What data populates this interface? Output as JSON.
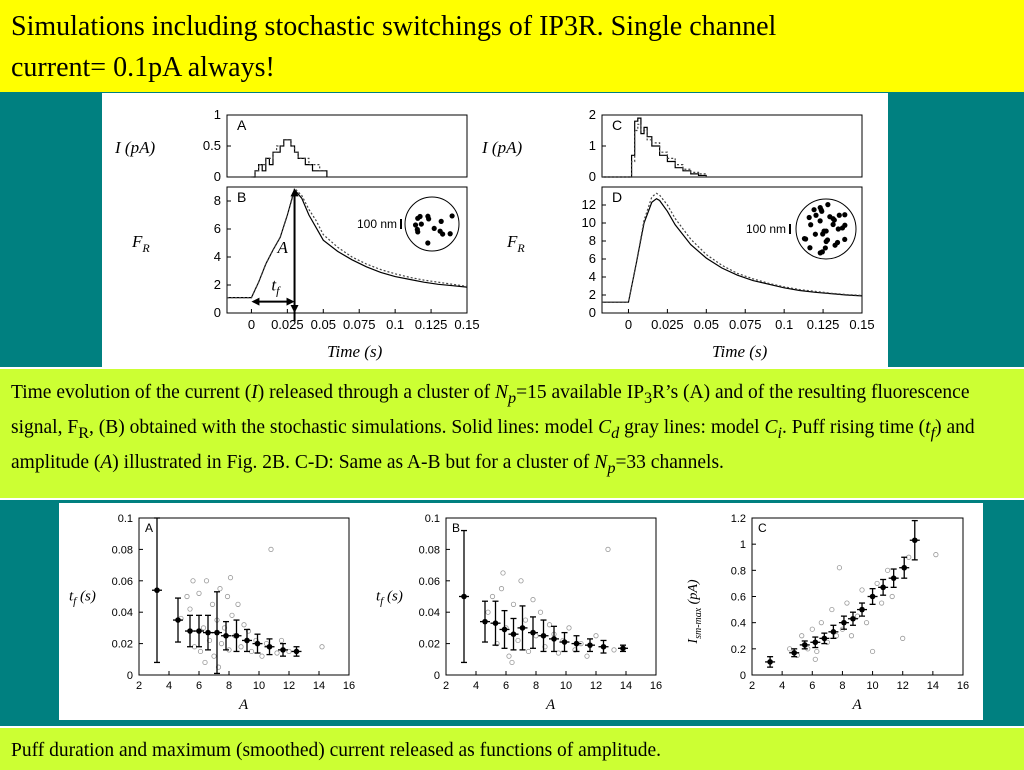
{
  "slide": {
    "title_line1": "Simulations including stochastic switchings of IP3R. Single channel",
    "title_line2": "current= 0.1pA always!",
    "caption1_parts": [
      "Time evolution of the current (",
      "I",
      ") released through a cluster of ",
      "N",
      "p",
      "=15 available IP",
      "3",
      "R’s (A) and of the resulting fluorescence signal, F",
      "R",
      ", (B) obtained with the stochastic simulations. Solid lines: model ",
      "C",
      "d",
      " gray lines: model ",
      "C",
      "i",
      ". Puff rising time (",
      "t",
      "f",
      ") and amplitude (",
      "A",
      ") illustrated in Fig. 2B. C-D: Same as A-B but for a cluster of ",
      "N",
      "p",
      "=33 channels."
    ],
    "caption2": "Puff duration and maximum (smoothed) current released as functions of amplitude."
  },
  "figure_top": {
    "panel_letters": [
      "A",
      "B",
      "C",
      "D"
    ],
    "current_ylabel": "I (pA)",
    "fluor_ylabel_main": "F",
    "fluor_ylabel_sub": "R",
    "xlabel": "Time (s)",
    "scale_label": "100 nm",
    "annot_A": "A",
    "annot_tf_main": "t",
    "annot_tf_sub": "f"
  },
  "figure_bottom": {
    "panel_letters": [
      "A",
      "B",
      "C"
    ],
    "xlabel": "A",
    "tf_ylabel_main": "t",
    "tf_ylabel_sub": "f",
    "tf_ylabel_rest": " (s)",
    "ism_ylabel_main": "I",
    "ism_ylabel_sub": "sm-max",
    "ism_ylabel_rest": " (pA)"
  },
  "chart_data": [
    {
      "type": "line",
      "panel": "A",
      "x": [
        0,
        0.0025,
        0.005,
        0.0075,
        0.01,
        0.0125,
        0.015,
        0.0175,
        0.02,
        0.0225,
        0.025,
        0.0275,
        0.03,
        0.0325,
        0.035,
        0.0375,
        0.04,
        0.0425,
        0.045,
        0.0475,
        0.05,
        0.0525
      ],
      "series": [
        {
          "values": [
            0,
            0.1,
            0.2,
            0.1,
            0.3,
            0.2,
            0.4,
            0.4,
            0.5,
            0.6,
            0.6,
            0.5,
            0.4,
            0.3,
            0.3,
            0.2,
            0.2,
            0.1,
            0.1,
            0.1,
            0.1,
            0
          ]
        },
        {
          "values": [
            0,
            0.1,
            0.2,
            0.2,
            0.3,
            0.3,
            0.4,
            0.5,
            0.5,
            0.6,
            0.6,
            0.5,
            0.4,
            0.3,
            0.3,
            0.3,
            0.2,
            0.2,
            0.2,
            0.1,
            0.1,
            0.1
          ]
        }
      ],
      "xlim": [
        -0.017,
        0.15
      ],
      "ylim": [
        0,
        1
      ],
      "yticks": [
        "0",
        "0.5",
        "1"
      ]
    },
    {
      "type": "line",
      "panel": "B",
      "x": [
        -0.017,
        0,
        0.005,
        0.01,
        0.015,
        0.02,
        0.025,
        0.03,
        0.035,
        0.04,
        0.045,
        0.05,
        0.06,
        0.07,
        0.08,
        0.09,
        0.1,
        0.11,
        0.12,
        0.13,
        0.14,
        0.15
      ],
      "series": [
        {
          "values": [
            1.1,
            1.1,
            2.2,
            3.5,
            4.5,
            5.4,
            7.0,
            8.8,
            8.2,
            7.0,
            6.1,
            5.2,
            4.4,
            3.8,
            3.3,
            2.9,
            2.6,
            2.4,
            2.2,
            2.05,
            1.95,
            1.85
          ]
        },
        {
          "values": [
            1.1,
            1.1,
            2.2,
            3.5,
            4.5,
            5.4,
            7.0,
            8.9,
            8.4,
            7.4,
            6.6,
            5.6,
            4.7,
            4.0,
            3.5,
            3.1,
            2.8,
            2.55,
            2.35,
            2.2,
            2.05,
            1.9
          ]
        }
      ],
      "xlim": [
        -0.017,
        0.15
      ],
      "ylim": [
        0,
        9
      ],
      "xticks": [
        "0",
        "0.025",
        "0.05",
        "0.075",
        "0.1",
        "0.125",
        "0.15"
      ],
      "yticks": [
        "0",
        "2",
        "4",
        "6",
        "8"
      ],
      "inset_label": "100 nm",
      "channel_count": 15
    },
    {
      "type": "line",
      "panel": "C",
      "x": [
        -0.017,
        0,
        0.002,
        0.004,
        0.006,
        0.008,
        0.01,
        0.012,
        0.015,
        0.02,
        0.025,
        0.03,
        0.035,
        0.04,
        0.045,
        0.05
      ],
      "series": [
        {
          "values": [
            0,
            0,
            0.7,
            1.8,
            1.9,
            1.4,
            1.6,
            1.3,
            1.0,
            0.7,
            0.5,
            0.3,
            0.2,
            0.1,
            0.05,
            0
          ]
        },
        {
          "values": [
            0,
            0,
            0.5,
            1.5,
            1.7,
            1.5,
            1.5,
            1.2,
            1.1,
            0.8,
            0.6,
            0.4,
            0.25,
            0.15,
            0.1,
            0
          ]
        }
      ],
      "xlim": [
        -0.017,
        0.15
      ],
      "ylim": [
        0,
        2
      ],
      "yticks": [
        "0",
        "1",
        "2"
      ]
    },
    {
      "type": "line",
      "panel": "D",
      "x": [
        -0.017,
        0,
        0.005,
        0.01,
        0.015,
        0.018,
        0.02,
        0.025,
        0.03,
        0.04,
        0.05,
        0.06,
        0.07,
        0.08,
        0.09,
        0.1,
        0.11,
        0.12,
        0.13,
        0.14,
        0.15
      ],
      "series": [
        {
          "values": [
            1.2,
            1.2,
            5.5,
            10.0,
            12.3,
            12.7,
            12.5,
            11.3,
            9.8,
            7.6,
            6.1,
            5.0,
            4.2,
            3.6,
            3.2,
            2.8,
            2.5,
            2.3,
            2.15,
            2.0,
            1.9
          ]
        },
        {
          "values": [
            1.2,
            1.2,
            5.5,
            10.3,
            12.9,
            13.3,
            13.1,
            12.0,
            10.5,
            8.2,
            6.5,
            5.3,
            4.4,
            3.8,
            3.3,
            2.9,
            2.6,
            2.4,
            2.2,
            2.05,
            1.95
          ]
        }
      ],
      "xlim": [
        -0.017,
        0.15
      ],
      "ylim": [
        0,
        14
      ],
      "xticks": [
        "0",
        "0.025",
        "0.05",
        "0.075",
        "0.1",
        "0.125",
        "0.15"
      ],
      "yticks": [
        "0",
        "2",
        "4",
        "6",
        "8",
        "10",
        "12"
      ],
      "inset_label": "100 nm",
      "channel_count": 33
    },
    {
      "type": "scatter",
      "panel": "A",
      "xlim": [
        2,
        16
      ],
      "ylim": [
        0,
        0.1
      ],
      "xticks": [
        "2",
        "4",
        "6",
        "8",
        "10",
        "12",
        "14",
        "16"
      ],
      "yticks": [
        "0",
        "0.02",
        "0.04",
        "0.06",
        "0.08",
        "0.1"
      ],
      "mean_points": [
        {
          "x": 3.2,
          "y": 0.054,
          "err": 0.046
        },
        {
          "x": 4.6,
          "y": 0.035,
          "err": 0.014
        },
        {
          "x": 5.4,
          "y": 0.028,
          "err": 0.01
        },
        {
          "x": 6.0,
          "y": 0.028,
          "err": 0.01
        },
        {
          "x": 6.6,
          "y": 0.027,
          "err": 0.011
        },
        {
          "x": 7.2,
          "y": 0.027,
          "err": 0.026
        },
        {
          "x": 7.8,
          "y": 0.025,
          "err": 0.009
        },
        {
          "x": 8.5,
          "y": 0.025,
          "err": 0.01
        },
        {
          "x": 9.2,
          "y": 0.022,
          "err": 0.007
        },
        {
          "x": 9.9,
          "y": 0.02,
          "err": 0.006
        },
        {
          "x": 10.7,
          "y": 0.018,
          "err": 0.005
        },
        {
          "x": 11.6,
          "y": 0.016,
          "err": 0.004
        },
        {
          "x": 12.5,
          "y": 0.015,
          "err": 0.003
        }
      ],
      "scatter_points": [
        [
          4.8,
          0.036
        ],
        [
          5.2,
          0.05
        ],
        [
          5.4,
          0.042
        ],
        [
          5.7,
          0.018
        ],
        [
          6.0,
          0.052
        ],
        [
          6.1,
          0.015
        ],
        [
          6.3,
          0.03
        ],
        [
          6.5,
          0.06
        ],
        [
          6.7,
          0.022
        ],
        [
          6.9,
          0.045
        ],
        [
          7.0,
          0.012
        ],
        [
          7.2,
          0.035
        ],
        [
          7.4,
          0.055
        ],
        [
          7.5,
          0.02
        ],
        [
          7.7,
          0.03
        ],
        [
          7.9,
          0.05
        ],
        [
          8.0,
          0.016
        ],
        [
          8.2,
          0.038
        ],
        [
          8.4,
          0.025
        ],
        [
          8.6,
          0.045
        ],
        [
          8.8,
          0.018
        ],
        [
          9.0,
          0.032
        ],
        [
          9.3,
          0.028
        ],
        [
          9.5,
          0.015
        ],
        [
          9.8,
          0.022
        ],
        [
          10.2,
          0.012
        ],
        [
          10.5,
          0.02
        ],
        [
          10.8,
          0.08
        ],
        [
          11.2,
          0.014
        ],
        [
          11.5,
          0.022
        ],
        [
          12.0,
          0.015
        ],
        [
          14.2,
          0.018
        ],
        [
          5.6,
          0.06
        ],
        [
          6.4,
          0.008
        ],
        [
          8.1,
          0.062
        ],
        [
          7.3,
          0.005
        ]
      ]
    },
    {
      "type": "scatter",
      "panel": "B",
      "xlim": [
        2,
        16
      ],
      "ylim": [
        0,
        0.1
      ],
      "xticks": [
        "2",
        "4",
        "6",
        "8",
        "10",
        "12",
        "14",
        "16"
      ],
      "yticks": [
        "0",
        "0.02",
        "0.04",
        "0.06",
        "0.08",
        "0.1"
      ],
      "mean_points": [
        {
          "x": 3.2,
          "y": 0.05,
          "err": 0.042
        },
        {
          "x": 4.6,
          "y": 0.034,
          "err": 0.013
        },
        {
          "x": 5.3,
          "y": 0.033,
          "err": 0.014
        },
        {
          "x": 5.9,
          "y": 0.029,
          "err": 0.012
        },
        {
          "x": 6.5,
          "y": 0.026,
          "err": 0.01
        },
        {
          "x": 7.1,
          "y": 0.03,
          "err": 0.014
        },
        {
          "x": 7.8,
          "y": 0.027,
          "err": 0.01
        },
        {
          "x": 8.5,
          "y": 0.025,
          "err": 0.01
        },
        {
          "x": 9.2,
          "y": 0.023,
          "err": 0.008
        },
        {
          "x": 9.9,
          "y": 0.021,
          "err": 0.006
        },
        {
          "x": 10.7,
          "y": 0.02,
          "err": 0.005
        },
        {
          "x": 11.6,
          "y": 0.019,
          "err": 0.004
        },
        {
          "x": 12.5,
          "y": 0.018,
          "err": 0.004
        },
        {
          "x": 13.8,
          "y": 0.017,
          "err": 0.002
        }
      ],
      "scatter_points": [
        [
          4.8,
          0.04
        ],
        [
          5.1,
          0.05
        ],
        [
          5.4,
          0.02
        ],
        [
          5.7,
          0.055
        ],
        [
          6.0,
          0.03
        ],
        [
          6.2,
          0.012
        ],
        [
          6.5,
          0.045
        ],
        [
          6.8,
          0.022
        ],
        [
          7.0,
          0.06
        ],
        [
          7.3,
          0.035
        ],
        [
          7.5,
          0.015
        ],
        [
          7.8,
          0.048
        ],
        [
          8.0,
          0.025
        ],
        [
          8.3,
          0.04
        ],
        [
          8.6,
          0.018
        ],
        [
          8.9,
          0.032
        ],
        [
          9.2,
          0.026
        ],
        [
          9.5,
          0.014
        ],
        [
          9.8,
          0.022
        ],
        [
          10.2,
          0.03
        ],
        [
          10.6,
          0.016
        ],
        [
          11.0,
          0.02
        ],
        [
          11.4,
          0.012
        ],
        [
          12.0,
          0.025
        ],
        [
          12.8,
          0.08
        ],
        [
          13.2,
          0.016
        ],
        [
          6.4,
          0.008
        ],
        [
          5.8,
          0.065
        ]
      ]
    },
    {
      "type": "scatter",
      "panel": "C",
      "xlim": [
        2,
        16
      ],
      "ylim": [
        0,
        1.2
      ],
      "xticks": [
        "2",
        "4",
        "6",
        "8",
        "10",
        "12",
        "14",
        "16"
      ],
      "yticks": [
        "0",
        "0.2",
        "0.4",
        "0.6",
        "0.8",
        "1",
        "1.2"
      ],
      "mean_points": [
        {
          "x": 3.2,
          "y": 0.1,
          "err": 0.04
        },
        {
          "x": 4.8,
          "y": 0.17,
          "err": 0.03
        },
        {
          "x": 5.5,
          "y": 0.23,
          "err": 0.03
        },
        {
          "x": 6.2,
          "y": 0.25,
          "err": 0.04
        },
        {
          "x": 6.8,
          "y": 0.28,
          "err": 0.04
        },
        {
          "x": 7.4,
          "y": 0.33,
          "err": 0.05
        },
        {
          "x": 8.1,
          "y": 0.4,
          "err": 0.05
        },
        {
          "x": 8.7,
          "y": 0.43,
          "err": 0.05
        },
        {
          "x": 9.3,
          "y": 0.5,
          "err": 0.05
        },
        {
          "x": 10.0,
          "y": 0.6,
          "err": 0.06
        },
        {
          "x": 10.7,
          "y": 0.67,
          "err": 0.06
        },
        {
          "x": 11.4,
          "y": 0.74,
          "err": 0.07
        },
        {
          "x": 12.1,
          "y": 0.82,
          "err": 0.08
        },
        {
          "x": 12.8,
          "y": 1.03,
          "err": 0.15
        }
      ],
      "scatter_points": [
        [
          4.5,
          0.2
        ],
        [
          5.0,
          0.15
        ],
        [
          5.3,
          0.3
        ],
        [
          5.7,
          0.2
        ],
        [
          6.0,
          0.35
        ],
        [
          6.3,
          0.18
        ],
        [
          6.6,
          0.4
        ],
        [
          7.0,
          0.25
        ],
        [
          7.3,
          0.5
        ],
        [
          7.6,
          0.3
        ],
        [
          8.0,
          0.35
        ],
        [
          8.3,
          0.55
        ],
        [
          8.6,
          0.3
        ],
        [
          9.0,
          0.45
        ],
        [
          9.3,
          0.65
        ],
        [
          9.6,
          0.4
        ],
        [
          10.0,
          0.18
        ],
        [
          10.3,
          0.7
        ],
        [
          10.6,
          0.55
        ],
        [
          11.0,
          0.8
        ],
        [
          11.3,
          0.6
        ],
        [
          12.0,
          0.28
        ],
        [
          12.4,
          0.9
        ],
        [
          14.2,
          0.92
        ],
        [
          7.8,
          0.82
        ],
        [
          6.2,
          0.12
        ]
      ]
    }
  ]
}
